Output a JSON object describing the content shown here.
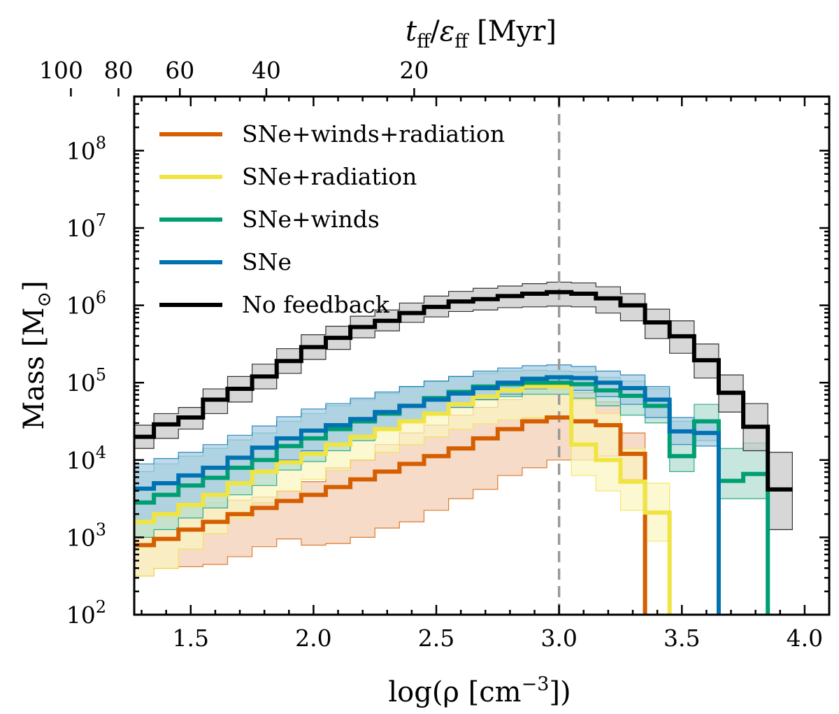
{
  "chart_data": {
    "type": "step-histogram",
    "xlabel_main": "log(ρ [cm",
    "xlabel_sup": "−3",
    "xlabel_end": "])",
    "ylabel_main": "Mass [M",
    "ylabel_sub": "⊙",
    "ylabel_end": "]",
    "top_axis": {
      "label_t": "t",
      "label_ff1": "ff",
      "label_slash": "/",
      "label_eps": "ε",
      "label_ff2": "ff",
      "label_unit": " [Myr]",
      "ticks": [
        100,
        80,
        60,
        40,
        20
      ],
      "tick_texts": [
        "100",
        "80",
        "60",
        "40",
        "20"
      ]
    },
    "xlim": [
      1.27,
      4.1
    ],
    "ylog_lim": [
      2,
      8.7
    ],
    "x_ticks": [
      1.5,
      2.0,
      2.5,
      3.0,
      3.5,
      4.0
    ],
    "x_tick_labels": [
      "1.5",
      "2.0",
      "2.5",
      "3.0",
      "3.5",
      "4.0"
    ],
    "y_ticks_exp": [
      2,
      3,
      4,
      5,
      6,
      7,
      8
    ],
    "y_tick_base": "10",
    "y_tick_exps": [
      "2",
      "3",
      "4",
      "5",
      "6",
      "7",
      "8"
    ],
    "vline_x": 3.0,
    "bin_edges": [
      1.27,
      1.35,
      1.45,
      1.55,
      1.65,
      1.75,
      1.85,
      1.95,
      2.05,
      2.15,
      2.25,
      2.35,
      2.45,
      2.55,
      2.65,
      2.75,
      2.85,
      2.95,
      3.05,
      3.15,
      3.25,
      3.35,
      3.45,
      3.55,
      3.65,
      3.75,
      3.85,
      3.95
    ],
    "series": [
      {
        "name": "No feedback",
        "color": "#000000",
        "fill": "#c8c8c8",
        "log_values": [
          4.3,
          4.46,
          4.55,
          4.78,
          4.92,
          5.08,
          5.28,
          5.46,
          5.58,
          5.72,
          5.8,
          5.9,
          5.98,
          6.05,
          6.08,
          6.12,
          6.15,
          6.17,
          6.15,
          6.09,
          6.0,
          5.78,
          5.6,
          5.29,
          4.87,
          4.43,
          3.62,
          null
        ],
        "log_lo": [
          4.15,
          4.28,
          4.4,
          4.6,
          4.75,
          4.92,
          5.12,
          5.3,
          5.43,
          5.58,
          5.67,
          5.78,
          5.85,
          5.92,
          5.94,
          5.97,
          5.98,
          5.99,
          5.98,
          5.9,
          5.8,
          5.57,
          5.38,
          5.06,
          4.62,
          4.12,
          3.1,
          null
        ],
        "log_hi": [
          4.45,
          4.6,
          4.68,
          4.92,
          5.08,
          5.24,
          5.44,
          5.62,
          5.73,
          5.86,
          5.94,
          6.03,
          6.12,
          6.18,
          6.22,
          6.25,
          6.28,
          6.3,
          6.29,
          6.24,
          6.15,
          5.95,
          5.8,
          5.5,
          5.1,
          4.73,
          4.1,
          null
        ]
      },
      {
        "name": "SNe",
        "color": "#0072b2",
        "fill": "#a8cce4",
        "log_values": [
          3.63,
          3.7,
          3.8,
          3.9,
          4.03,
          4.16,
          4.28,
          4.38,
          4.45,
          4.53,
          4.62,
          4.7,
          4.78,
          4.86,
          4.93,
          5.0,
          5.05,
          5.07,
          5.06,
          5.0,
          4.93,
          4.78,
          4.37,
          4.35,
          null,
          null,
          null,
          null
        ],
        "log_lo": [
          3.2,
          3.3,
          3.42,
          3.55,
          3.72,
          3.87,
          4.0,
          4.12,
          4.18,
          4.28,
          4.38,
          4.48,
          4.58,
          4.68,
          4.78,
          4.85,
          4.92,
          4.94,
          4.9,
          4.82,
          4.72,
          4.55,
          4.2,
          4.18,
          null,
          null,
          null,
          null
        ],
        "log_hi": [
          3.95,
          4.02,
          4.1,
          4.2,
          4.32,
          4.44,
          4.56,
          4.66,
          4.73,
          4.8,
          4.88,
          4.95,
          5.02,
          5.08,
          5.15,
          5.19,
          5.22,
          5.23,
          5.21,
          5.15,
          5.1,
          4.95,
          4.55,
          4.5,
          null,
          null,
          null,
          null
        ]
      },
      {
        "name": "SNe+winds",
        "color": "#009e73",
        "fill": "#b2ddd0",
        "log_values": [
          3.45,
          3.55,
          3.67,
          3.77,
          3.9,
          4.0,
          4.18,
          4.28,
          4.4,
          4.5,
          4.6,
          4.7,
          4.8,
          4.88,
          4.95,
          4.98,
          5.0,
          5.0,
          4.98,
          4.9,
          4.83,
          4.7,
          4.05,
          4.5,
          3.73,
          3.82,
          null,
          null
        ],
        "log_lo": [
          3.0,
          3.1,
          3.25,
          3.38,
          3.55,
          3.67,
          3.87,
          3.98,
          4.12,
          4.25,
          4.38,
          4.5,
          4.62,
          4.7,
          4.78,
          4.82,
          4.85,
          4.85,
          4.8,
          4.7,
          4.58,
          4.48,
          3.85,
          4.25,
          3.5,
          3.5,
          null,
          null
        ],
        "log_hi": [
          3.85,
          3.95,
          4.05,
          4.15,
          4.26,
          4.35,
          4.5,
          4.6,
          4.7,
          4.78,
          4.86,
          4.95,
          5.02,
          5.08,
          5.12,
          5.15,
          5.16,
          5.15,
          5.14,
          5.07,
          5.02,
          4.92,
          4.5,
          4.72,
          4.15,
          4.22,
          null,
          null
        ]
      },
      {
        "name": "SNe+radiation",
        "color": "#f0e442",
        "fill": "#faf5c0",
        "log_values": [
          3.2,
          3.3,
          3.42,
          3.55,
          3.7,
          3.85,
          3.97,
          4.08,
          4.2,
          4.3,
          4.4,
          4.5,
          4.6,
          4.72,
          4.82,
          4.9,
          4.95,
          4.95,
          4.2,
          4.0,
          3.72,
          3.32,
          null,
          null,
          null,
          null,
          null,
          null
        ],
        "log_lo": [
          2.5,
          2.6,
          2.85,
          3.05,
          3.25,
          3.45,
          3.6,
          3.75,
          3.87,
          4.0,
          4.1,
          4.2,
          4.3,
          4.4,
          4.47,
          4.52,
          4.55,
          4.55,
          3.8,
          3.6,
          3.35,
          2.95,
          null,
          null,
          null,
          null,
          null,
          null
        ],
        "log_hi": [
          3.6,
          3.7,
          3.82,
          3.92,
          4.05,
          4.18,
          4.3,
          4.4,
          4.52,
          4.62,
          4.72,
          4.82,
          4.9,
          4.98,
          5.05,
          5.1,
          5.12,
          5.1,
          4.78,
          4.6,
          4.15,
          3.7,
          null,
          null,
          null,
          null,
          null,
          null
        ],
        "open_band": true
      },
      {
        "name": "SNe+winds+radiation",
        "color": "#d55e00",
        "fill": "#f3cdb3",
        "log_values": [
          2.9,
          2.98,
          3.1,
          3.2,
          3.3,
          3.38,
          3.47,
          3.55,
          3.65,
          3.75,
          3.85,
          3.95,
          4.05,
          4.15,
          4.28,
          4.4,
          4.5,
          4.55,
          4.5,
          4.45,
          4.08,
          null,
          null,
          null,
          null,
          null,
          null,
          null
        ],
        "log_lo": [
          2.5,
          2.6,
          2.62,
          2.65,
          2.75,
          2.88,
          2.98,
          2.9,
          2.92,
          3.0,
          3.12,
          3.2,
          3.35,
          3.5,
          3.62,
          3.8,
          3.9,
          4.0,
          4.0,
          4.05,
          3.75,
          null,
          null,
          null,
          null,
          null,
          null,
          null
        ],
        "log_hi": [
          3.4,
          3.42,
          3.45,
          3.45,
          3.48,
          3.52,
          3.6,
          3.72,
          3.9,
          4.0,
          4.2,
          4.35,
          4.45,
          4.58,
          4.68,
          4.78,
          4.88,
          4.92,
          4.87,
          4.75,
          4.35,
          null,
          null,
          null,
          null,
          null,
          null,
          null
        ]
      }
    ],
    "legend": {
      "placement": "upper-left",
      "entries": [
        {
          "label": "SNe+winds+radiation",
          "color": "#d55e00"
        },
        {
          "label": "SNe+radiation",
          "color": "#f0e442"
        },
        {
          "label": "SNe+winds",
          "color": "#009e73"
        },
        {
          "label": "SNe",
          "color": "#0072b2"
        },
        {
          "label": "No feedback",
          "color": "#000000"
        }
      ]
    }
  }
}
